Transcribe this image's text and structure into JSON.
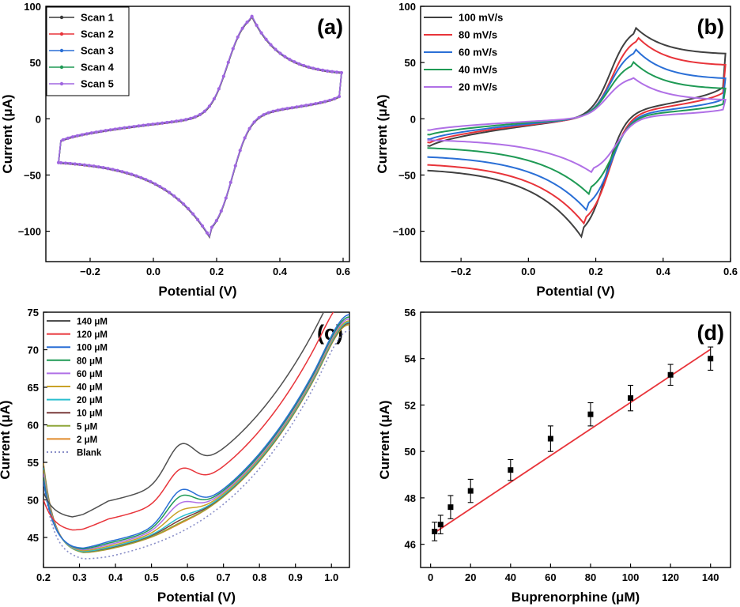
{
  "chart_data": [
    {
      "type": "line",
      "panel_label": "(a)",
      "xlabel": "Potential (V)",
      "ylabel": "Current (μA)",
      "xlim": [
        -0.34,
        0.62
      ],
      "ylim": [
        -127,
        100
      ],
      "xticks": [
        -0.2,
        0.0,
        0.2,
        0.4,
        0.6
      ],
      "xtick_labels": [
        "−0.2",
        "0.0",
        "0.2",
        "0.4",
        "0.6"
      ],
      "yticks": [
        -100,
        -50,
        0,
        50,
        100
      ],
      "ytick_labels": [
        "−100",
        "−50",
        "0",
        "50",
        "100"
      ],
      "legend_position": "top-left",
      "cv_shape": {
        "x_min": -0.3,
        "x_max": 0.595,
        "ox_peak": [
          0.305,
          95
        ],
        "red_peak": [
          0.18,
          -106
        ],
        "i_low": -39,
        "i_high": 41
      },
      "series": [
        {
          "name": "Scan 1",
          "color": "#3a3a3a",
          "scale": 1.0
        },
        {
          "name": "Scan 2",
          "color": "#e8343a",
          "scale": 1.0
        },
        {
          "name": "Scan 3",
          "color": "#2a6fd6",
          "scale": 1.0
        },
        {
          "name": "Scan 4",
          "color": "#1f9a55",
          "scale": 1.0
        },
        {
          "name": "Scan 5",
          "color": "#a066e0",
          "scale": 1.0
        }
      ]
    },
    {
      "type": "line",
      "panel_label": "(b)",
      "xlabel": "Potential (V)",
      "ylabel": "Current (μA)",
      "xlim": [
        -0.32,
        0.6
      ],
      "ylim": [
        -127,
        100
      ],
      "xticks": [
        -0.2,
        0.0,
        0.2,
        0.4,
        0.6
      ],
      "xtick_labels": [
        "−0.2",
        "0.0",
        "0.2",
        "0.4",
        "0.6"
      ],
      "yticks": [
        -100,
        -50,
        0,
        50,
        100
      ],
      "ytick_labels": [
        "−100",
        "−50",
        "0",
        "50",
        "100"
      ],
      "legend_position": "top-left",
      "series": [
        {
          "name": "100 mV/s",
          "color": "#404040",
          "x_min": -0.3,
          "x_max": 0.585,
          "ox_peak": [
            0.315,
            82
          ],
          "red_peak": [
            0.16,
            -106
          ],
          "i_low": -48,
          "i_high": 58,
          "i_neg_start": -46
        },
        {
          "name": "80 mV/s",
          "color": "#e8343a",
          "x_min": -0.3,
          "x_max": 0.585,
          "ox_peak": [
            0.32,
            74
          ],
          "red_peak": [
            0.17,
            -95
          ],
          "i_low": -42,
          "i_high": 48,
          "i_neg_start": -41
        },
        {
          "name": "60 mV/s",
          "color": "#2a6fd6",
          "x_min": -0.3,
          "x_max": 0.585,
          "ox_peak": [
            0.315,
            63
          ],
          "red_peak": [
            0.175,
            -82
          ],
          "i_low": -36,
          "i_high": 36,
          "i_neg_start": -34
        },
        {
          "name": "40 mV/s",
          "color": "#1f9a55",
          "x_min": -0.3,
          "x_max": 0.585,
          "ox_peak": [
            0.31,
            51
          ],
          "red_peak": [
            0.18,
            -67
          ],
          "i_low": -28,
          "i_high": 27,
          "i_neg_start": -26
        },
        {
          "name": "20 mV/s",
          "color": "#b070e6",
          "x_min": -0.3,
          "x_max": 0.585,
          "ox_peak": [
            0.305,
            38
          ],
          "red_peak": [
            0.19,
            -48
          ],
          "i_low": -20,
          "i_high": 17,
          "i_neg_start": -19
        }
      ]
    },
    {
      "type": "line",
      "panel_label": "(c)",
      "xlabel": "Potential (V)",
      "ylabel": "Current (μA)",
      "xlim": [
        0.2,
        1.05
      ],
      "ylim": [
        41,
        75
      ],
      "xticks": [
        0.2,
        0.3,
        0.4,
        0.5,
        0.6,
        0.7,
        0.8,
        0.9,
        1.0
      ],
      "xtick_labels": [
        "0.2",
        "0.3",
        "0.4",
        "0.5",
        "0.6",
        "0.7",
        "0.8",
        "0.9",
        "1.0"
      ],
      "yticks": [
        45,
        50,
        55,
        60,
        65,
        70,
        75
      ],
      "ytick_labels": [
        "45",
        "50",
        "55",
        "60",
        "65",
        "70",
        "75"
      ],
      "legend_position": "top-left",
      "series": [
        {
          "name": "140 μM",
          "color": "#505050",
          "dash": false,
          "start": 51.0,
          "min": 47.5,
          "pk": 4.3,
          "end": 73.8,
          "offset": 4.6
        },
        {
          "name": "120 μM",
          "color": "#e8343a",
          "dash": false,
          "start": 50.0,
          "min": 45.7,
          "pk": 3.4,
          "end": 72.9,
          "offset": 2.9
        },
        {
          "name": "100 μM",
          "color": "#2a6fd6",
          "dash": false,
          "start": 52.5,
          "min": 43.2,
          "pk": 3.6,
          "end": 72.2,
          "offset": 1.4
        },
        {
          "name": "80 μM",
          "color": "#1f9a55",
          "dash": false,
          "start": 53.0,
          "min": 43.1,
          "pk": 3.0,
          "end": 71.9,
          "offset": 1.1
        },
        {
          "name": "60 μM",
          "color": "#b070e6",
          "dash": false,
          "start": 53.5,
          "min": 43.0,
          "pk": 2.3,
          "end": 71.7,
          "offset": 0.8
        },
        {
          "name": "40 μM",
          "color": "#c9a227",
          "dash": false,
          "start": 54.0,
          "min": 42.9,
          "pk": 1.5,
          "end": 71.5,
          "offset": 0.5
        },
        {
          "name": "20 μM",
          "color": "#2bbfcf",
          "dash": false,
          "start": 54.3,
          "min": 42.8,
          "pk": 0.8,
          "end": 71.4,
          "offset": 0.3
        },
        {
          "name": "10 μM",
          "color": "#7a3b3b",
          "dash": false,
          "start": 54.5,
          "min": 42.8,
          "pk": 0.5,
          "end": 71.3,
          "offset": 0.1
        },
        {
          "name": "5 μM",
          "color": "#8fa63a",
          "dash": false,
          "start": 54.7,
          "min": 42.7,
          "pk": 0.3,
          "end": 71.2,
          "offset": 0.0
        },
        {
          "name": "2 μM",
          "color": "#e08a2a",
          "dash": false,
          "start": 54.9,
          "min": 42.7,
          "pk": 0.2,
          "end": 71.1,
          "offset": -0.1
        },
        {
          "name": "Blank",
          "color": "#8a8fc8",
          "dash": true,
          "start": 52.5,
          "min": 42.0,
          "pk": 0.0,
          "end": 70.8,
          "offset": -0.9
        }
      ]
    },
    {
      "type": "scatter",
      "panel_label": "(d)",
      "xlabel": "Buprenorphine (μM)",
      "ylabel": "Current (μA)",
      "xlim": [
        -5,
        150
      ],
      "ylim": [
        45,
        56
      ],
      "xticks": [
        0,
        20,
        40,
        60,
        80,
        100,
        120,
        140
      ],
      "xtick_labels": [
        "0",
        "20",
        "40",
        "60",
        "80",
        "100",
        "120",
        "140"
      ],
      "yticks": [
        46,
        48,
        50,
        52,
        54,
        56
      ],
      "ytick_labels": [
        "46",
        "48",
        "50",
        "52",
        "54",
        "56"
      ],
      "x": [
        2,
        5,
        10,
        20,
        40,
        60,
        80,
        100,
        120,
        140
      ],
      "y": [
        46.55,
        46.85,
        47.6,
        48.3,
        49.2,
        50.55,
        51.6,
        52.3,
        53.3,
        54.0
      ],
      "yerr": [
        0.4,
        0.4,
        0.5,
        0.5,
        0.45,
        0.55,
        0.5,
        0.55,
        0.45,
        0.5
      ],
      "fit_line": {
        "x": [
          2,
          140
        ],
        "y": [
          46.5,
          54.4
        ],
        "color": "#e8343a"
      }
    }
  ]
}
